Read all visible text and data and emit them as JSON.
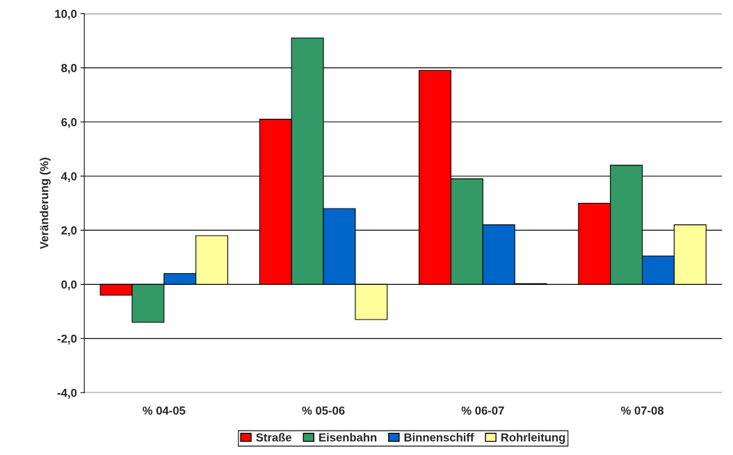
{
  "chart_data": {
    "type": "bar",
    "ylabel": "Veränderung (%)",
    "categories": [
      "% 04-05",
      "% 05-06",
      "% 06-07",
      "% 07-08"
    ],
    "series": [
      {
        "name": "Straße",
        "color": "#ff0000",
        "values": [
          -0.4,
          6.1,
          7.9,
          3.0
        ]
      },
      {
        "name": "Eisenbahn",
        "color": "#339966",
        "values": [
          -1.4,
          9.1,
          3.9,
          4.4
        ]
      },
      {
        "name": "Binnenschiff",
        "color": "#0066cc",
        "values": [
          0.4,
          2.8,
          2.2,
          1.05
        ]
      },
      {
        "name": "Rohrleitung",
        "color": "#ffff99",
        "values": [
          1.8,
          -1.3,
          0.03,
          2.2
        ]
      }
    ],
    "ylim": [
      -4,
      10
    ],
    "yticks": [
      {
        "value": -4,
        "label": "-4,0"
      },
      {
        "value": -2,
        "label": "-2,0"
      },
      {
        "value": 0,
        "label": "0,0"
      },
      {
        "value": 2,
        "label": "2,0"
      },
      {
        "value": 4,
        "label": "4,0"
      },
      {
        "value": 6,
        "label": "6,0"
      },
      {
        "value": 8,
        "label": "8,0"
      },
      {
        "value": 10,
        "label": "10,0"
      }
    ],
    "grid": "y",
    "legend": "bottom"
  }
}
